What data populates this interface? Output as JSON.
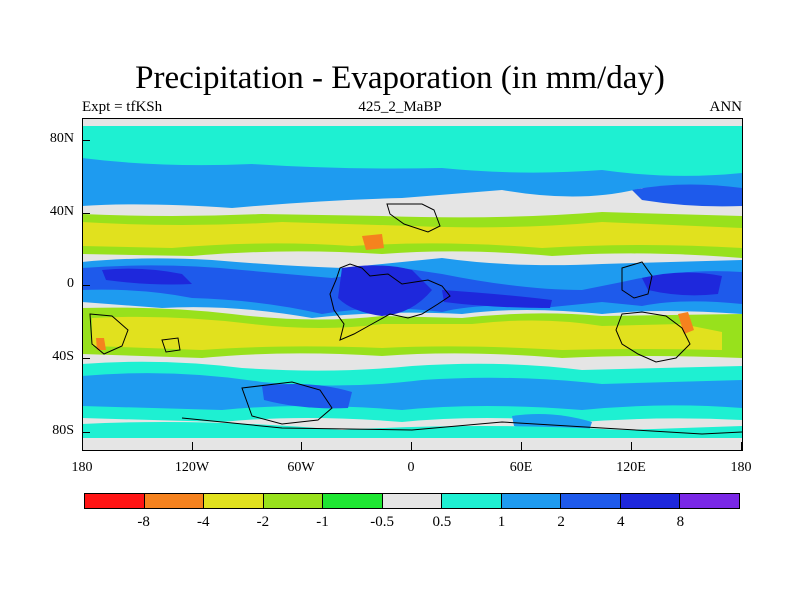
{
  "title": "Precipitation - Evaporation (in mm/day)",
  "subtitle_left": "Expt = tfKSh",
  "subtitle_center": "425_2_MaBP",
  "subtitle_right": "ANN",
  "y_ticks": [
    "80N",
    "40N",
    "0",
    "40S",
    "80S"
  ],
  "x_ticks": [
    "180",
    "120W",
    "60W",
    "0",
    "60E",
    "120E",
    "180"
  ],
  "colorbar": {
    "labels": [
      "-8",
      "-4",
      "-2",
      "-1",
      "-0.5",
      "0.5",
      "1",
      "2",
      "4",
      "8"
    ],
    "colors": [
      "#ff1414",
      "#f5821e",
      "#e1e11e",
      "#98e11c",
      "#1ee632",
      "#e5e5e5",
      "#1ef0d2",
      "#1e9bf0",
      "#1e5aeb",
      "#1e28dc",
      "#7a28e6"
    ]
  }
}
